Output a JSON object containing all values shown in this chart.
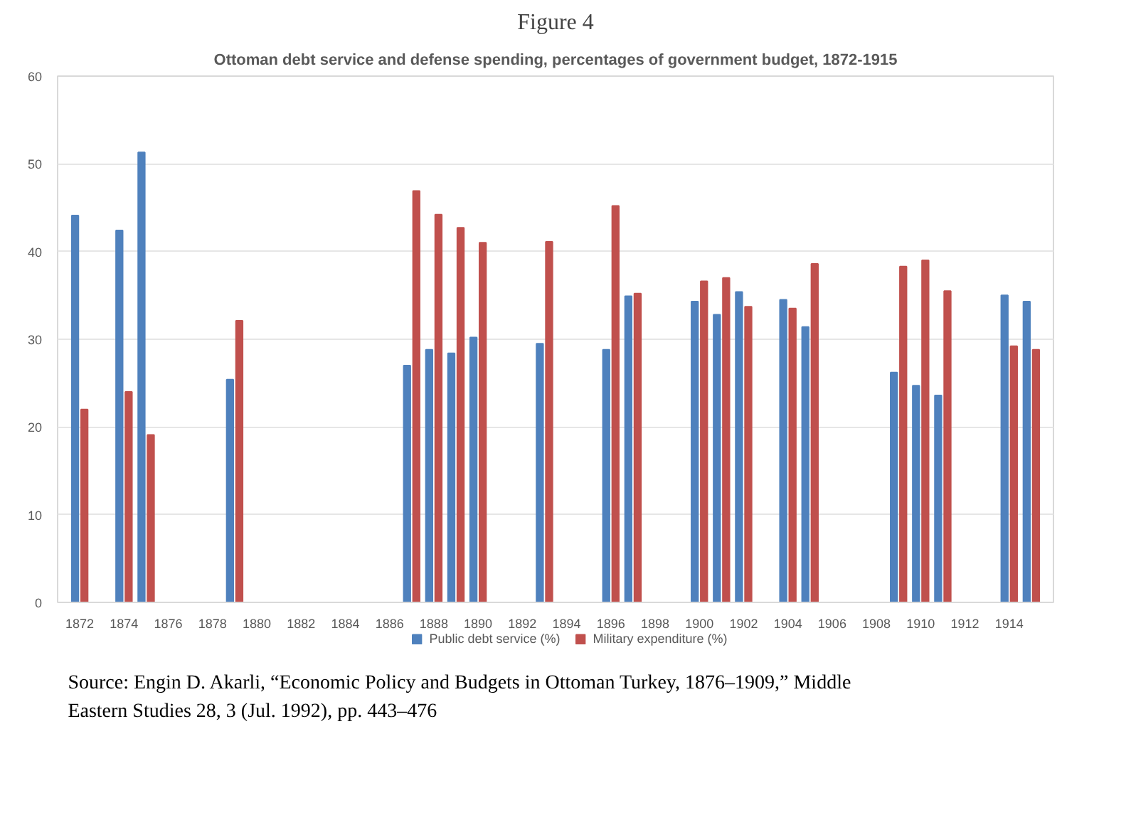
{
  "chart_data": {
    "type": "bar",
    "title": "Figure 4",
    "subtitle": "Ottoman debt service and defense spending, percentages of government budget, 1872-1915",
    "categories": [
      "1872",
      null,
      "1874",
      null,
      "1876",
      null,
      "1878",
      null,
      "1880",
      null,
      "1882",
      null,
      "1884",
      null,
      "1886",
      null,
      "1888",
      null,
      "1890",
      null,
      "1892",
      null,
      "1894",
      null,
      "1896",
      null,
      "1898",
      null,
      "1900",
      null,
      "1902",
      null,
      "1904",
      null,
      "1906",
      null,
      "1908",
      null,
      "1910",
      null,
      "1912",
      null,
      "1914",
      null
    ],
    "series": [
      {
        "name": "Public debt service (%)",
        "color": "#4f81bd",
        "values": [
          44.1,
          null,
          42.4,
          51.3,
          null,
          null,
          null,
          25.4,
          null,
          null,
          null,
          null,
          null,
          null,
          null,
          27.0,
          28.8,
          28.4,
          30.2,
          null,
          null,
          29.5,
          null,
          null,
          28.8,
          34.9,
          null,
          null,
          34.3,
          32.8,
          35.4,
          null,
          34.5,
          31.4,
          null,
          null,
          null,
          26.2,
          24.7,
          23.6,
          null,
          null,
          35.0,
          34.3
        ]
      },
      {
        "name": "Military expenditure (%)",
        "color": "#c0504d",
        "values": [
          22.0,
          null,
          24.0,
          19.1,
          null,
          null,
          null,
          32.1,
          null,
          null,
          null,
          null,
          null,
          null,
          null,
          46.9,
          44.2,
          42.7,
          41.0,
          null,
          null,
          41.1,
          null,
          null,
          45.2,
          35.2,
          null,
          null,
          36.6,
          37.0,
          33.7,
          null,
          33.5,
          38.6,
          null,
          null,
          null,
          38.3,
          39.0,
          35.5,
          null,
          null,
          29.2,
          28.8
        ]
      }
    ],
    "ylim": [
      0,
      60
    ],
    "yticks": [
      0,
      10,
      20,
      30,
      40,
      50,
      60
    ],
    "grid": "y",
    "legend": "bottom",
    "annotations": [
      "Source: Engin D. Akarli, “Economic Policy and Budgets in Ottoman Turkey, 1876–1909,” Middle Eastern Studies 28, 3 (Jul. 1992), pp. 443–476"
    ]
  }
}
